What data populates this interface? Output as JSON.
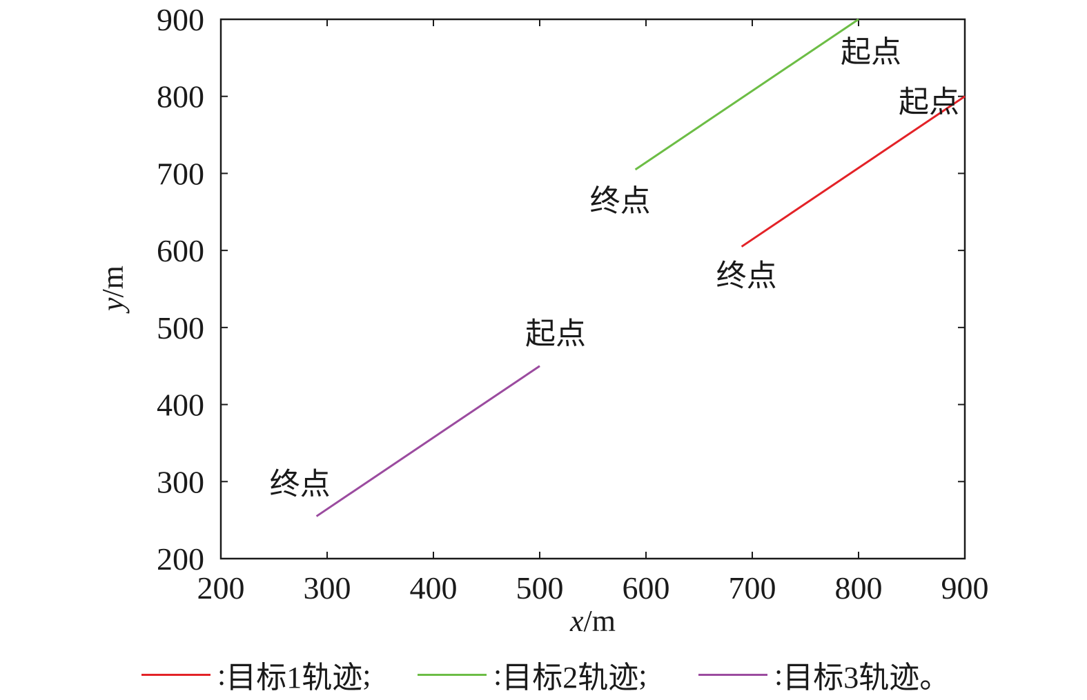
{
  "chart_data": {
    "type": "line",
    "xlabel_var": "x",
    "xlabel_unit": "/m",
    "ylabel_var": "y",
    "ylabel_unit": "/m",
    "xlim": [
      200,
      900
    ],
    "ylim": [
      200,
      900
    ],
    "xticks": [
      200,
      300,
      400,
      500,
      600,
      700,
      800,
      900
    ],
    "yticks": [
      200,
      300,
      400,
      500,
      600,
      700,
      800,
      900
    ],
    "grid": false,
    "legend_position": "bottom",
    "series": [
      {
        "name": "目标1轨迹",
        "color": "#e32227",
        "x": [
          900,
          690
        ],
        "y": [
          800,
          605
        ],
        "start_label": "起点",
        "end_label": "终点"
      },
      {
        "name": "目标2轨迹",
        "color": "#6cbd45",
        "x": [
          800,
          590
        ],
        "y": [
          900,
          705
        ],
        "start_label": "起点",
        "end_label": "终点"
      },
      {
        "name": "目标3轨迹",
        "color": "#9b4b9f",
        "x": [
          500,
          290
        ],
        "y": [
          450,
          255
        ],
        "start_label": "起点",
        "end_label": "终点"
      }
    ]
  },
  "legend": {
    "items": [
      {
        "prefix": ": ",
        "name": "目标1轨迹",
        "suffix": ";"
      },
      {
        "prefix": ": ",
        "name": "目标2轨迹",
        "suffix": ";"
      },
      {
        "prefix": ": ",
        "name": "目标3轨迹",
        "suffix": "。"
      }
    ]
  }
}
